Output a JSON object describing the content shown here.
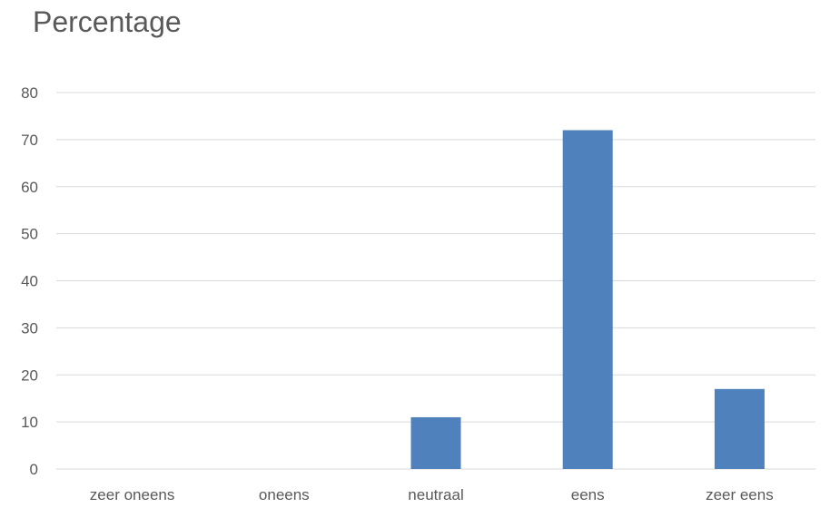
{
  "chart_data": {
    "type": "bar",
    "title": "Percentage",
    "categories": [
      "zeer oneens",
      "oneens",
      "neutraal",
      "eens",
      "zeer eens"
    ],
    "values": [
      0,
      0,
      11,
      72,
      17
    ],
    "ylim": [
      0,
      80
    ],
    "yticks": [
      0,
      10,
      20,
      30,
      40,
      50,
      60,
      70,
      80
    ],
    "xlabel": "",
    "ylabel": "",
    "grid": true,
    "legend": "none",
    "colors": {
      "bar": "#4F81BD",
      "grid": "#D9D9D9",
      "text": "#595959"
    }
  }
}
